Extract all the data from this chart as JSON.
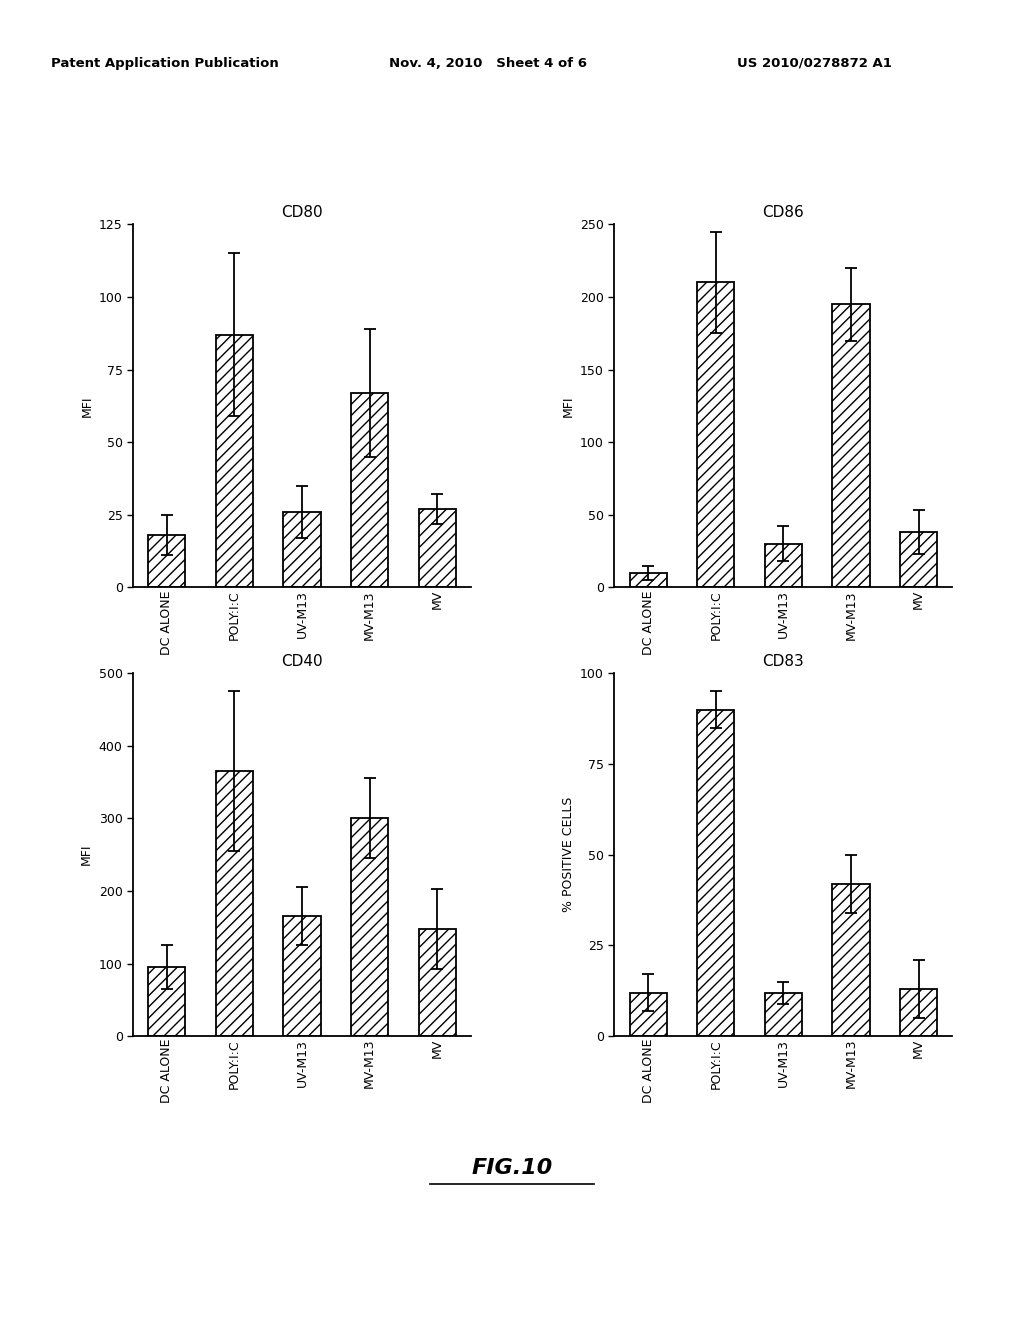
{
  "header_left": "Patent Application Publication",
  "header_mid": "Nov. 4, 2010   Sheet 4 of 6",
  "header_right": "US 2010/0278872 A1",
  "fig_label": "FIG.10",
  "categories": [
    "DC ALONE",
    "POLY:I:C",
    "UV-M13",
    "MV-M13",
    "MV"
  ],
  "subplots": [
    {
      "title": "CD80",
      "ylabel": "MFI",
      "ylim": [
        0,
        125
      ],
      "yticks": [
        0,
        25,
        50,
        75,
        100,
        125
      ],
      "values": [
        18,
        87,
        26,
        67,
        27
      ],
      "errors": [
        7,
        28,
        9,
        22,
        5
      ]
    },
    {
      "title": "CD86",
      "ylabel": "MFI",
      "ylim": [
        0,
        250
      ],
      "yticks": [
        0,
        50,
        100,
        150,
        200,
        250
      ],
      "values": [
        10,
        210,
        30,
        195,
        38
      ],
      "errors": [
        5,
        35,
        12,
        25,
        15
      ]
    },
    {
      "title": "CD40",
      "ylabel": "MFI",
      "ylim": [
        0,
        500
      ],
      "yticks": [
        0,
        100,
        200,
        300,
        400,
        500
      ],
      "values": [
        95,
        365,
        165,
        300,
        148
      ],
      "errors": [
        30,
        110,
        40,
        55,
        55
      ]
    },
    {
      "title": "CD83",
      "ylabel": "% POSITIVE CELLS",
      "ylim": [
        0,
        100
      ],
      "yticks": [
        0,
        25,
        50,
        75,
        100
      ],
      "values": [
        12,
        90,
        12,
        42,
        13
      ],
      "errors": [
        5,
        5,
        3,
        8,
        8
      ]
    }
  ],
  "bar_color": "white",
  "hatch": "///",
  "edge_color": "black",
  "background_color": "white"
}
